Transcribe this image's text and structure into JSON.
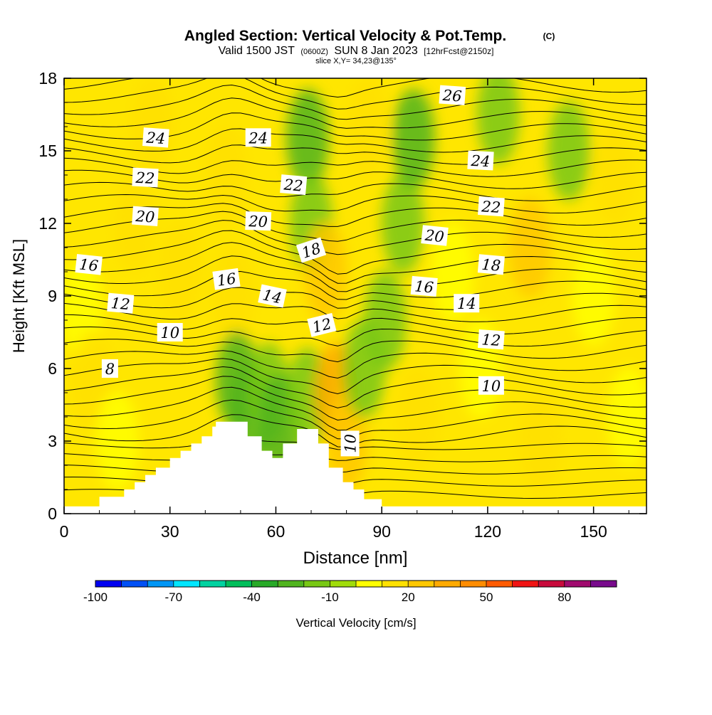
{
  "chart_data": {
    "type": "heatmap",
    "title": "Angled Section: Vertical Velocity & Pot.Temp.",
    "title_mark": "(C)",
    "subtitle": {
      "valid": "Valid 1500 JST",
      "utc": "(0600Z)",
      "date": "SUN 8 Jan 2023",
      "forecast": "[12hrFcst@2150z]"
    },
    "slice_info": "slice X,Y= 34,23@135°",
    "xlabel": "Distance [nm]",
    "ylabel": "Height [Kft MSL]",
    "xlim": [
      0,
      165
    ],
    "ylim": [
      0,
      18
    ],
    "xticks": [
      0,
      30,
      60,
      90,
      120,
      150
    ],
    "yticks": [
      0,
      3,
      6,
      9,
      12,
      15,
      18
    ],
    "colorbar": {
      "label": "Vertical Velocity [cm/s]",
      "tick_labels": [
        -100,
        -70,
        -40,
        -10,
        20,
        50,
        80
      ],
      "colors": [
        "#0000f0",
        "#0050f5",
        "#0096f5",
        "#00e6ff",
        "#00d2a0",
        "#00be5a",
        "#28aa28",
        "#50b41e",
        "#78c814",
        "#a0dc0a",
        "#ffff00",
        "#ffe100",
        "#ffc800",
        "#ffaa00",
        "#ff8c00",
        "#ff5a00",
        "#f01414",
        "#c80a3c",
        "#a00a6e",
        "#780a8c"
      ]
    },
    "terrain_top_kft": [
      [
        0,
        0.3
      ],
      [
        10,
        0.3
      ],
      [
        10,
        0.7
      ],
      [
        17,
        0.7
      ],
      [
        17,
        1.0
      ],
      [
        20,
        1.0
      ],
      [
        20,
        1.3
      ],
      [
        23,
        1.3
      ],
      [
        23,
        1.6
      ],
      [
        26,
        1.6
      ],
      [
        26,
        1.9
      ],
      [
        30,
        1.9
      ],
      [
        30,
        2.3
      ],
      [
        33,
        2.3
      ],
      [
        33,
        2.6
      ],
      [
        36,
        2.6
      ],
      [
        36,
        2.9
      ],
      [
        39,
        2.9
      ],
      [
        39,
        3.2
      ],
      [
        42,
        3.2
      ],
      [
        42,
        3.6
      ],
      [
        43,
        3.6
      ],
      [
        43,
        3.8
      ],
      [
        52,
        3.8
      ],
      [
        52,
        3.2
      ],
      [
        56,
        3.2
      ],
      [
        56,
        2.6
      ],
      [
        59,
        2.6
      ],
      [
        59,
        2.3
      ],
      [
        62,
        2.3
      ],
      [
        62,
        2.9
      ],
      [
        66,
        2.9
      ],
      [
        66,
        3.5
      ],
      [
        72,
        3.5
      ],
      [
        72,
        2.9
      ],
      [
        75,
        2.9
      ],
      [
        75,
        1.9
      ],
      [
        79,
        1.9
      ],
      [
        79,
        1.3
      ],
      [
        82,
        1.3
      ],
      [
        82,
        1.0
      ],
      [
        85,
        1.0
      ],
      [
        85,
        0.6
      ],
      [
        90,
        0.6
      ],
      [
        90,
        0.3
      ],
      [
        165,
        0.3
      ]
    ],
    "velocity_field_cm_s": [
      {
        "x": 5,
        "y": 8.5,
        "w": 0
      },
      {
        "x": 8,
        "y": 5.5,
        "w": 15
      },
      {
        "x": 15,
        "y": 3,
        "w": 5
      },
      {
        "x": 20,
        "y": 12,
        "w": 10
      },
      {
        "x": 25,
        "y": 16,
        "w": 12
      },
      {
        "x": 33,
        "y": 10,
        "w": 10
      },
      {
        "x": 46,
        "y": 14,
        "w": 18
      },
      {
        "x": 48,
        "y": 9,
        "w": 16
      },
      {
        "x": 49,
        "y": 5.5,
        "w": -30
      },
      {
        "x": 53,
        "y": 4.2,
        "w": -28
      },
      {
        "x": 58,
        "y": 5,
        "w": -12
      },
      {
        "x": 61,
        "y": 3.7,
        "w": -25
      },
      {
        "x": 69,
        "y": 4.8,
        "w": -12
      },
      {
        "x": 69,
        "y": 15.5,
        "w": -25
      },
      {
        "x": 70,
        "y": 12,
        "w": -12
      },
      {
        "x": 74,
        "y": 10,
        "w": 22
      },
      {
        "x": 77,
        "y": 5,
        "w": 35
      },
      {
        "x": 80,
        "y": 3,
        "w": 20
      },
      {
        "x": 85,
        "y": 6,
        "w": -12
      },
      {
        "x": 86,
        "y": 16,
        "w": 18
      },
      {
        "x": 91,
        "y": 8,
        "w": -15
      },
      {
        "x": 96,
        "y": 12,
        "w": -18
      },
      {
        "x": 99,
        "y": 15.5,
        "w": -30
      },
      {
        "x": 100,
        "y": 4,
        "w": 10
      },
      {
        "x": 110,
        "y": 10,
        "w": 8
      },
      {
        "x": 118,
        "y": 6,
        "w": 0
      },
      {
        "x": 123,
        "y": 16.5,
        "w": -15
      },
      {
        "x": 132,
        "y": 11,
        "w": 20
      },
      {
        "x": 135,
        "y": 3,
        "w": 12
      },
      {
        "x": 143,
        "y": 15,
        "w": -15
      },
      {
        "x": 150,
        "y": 9,
        "w": 5
      },
      {
        "x": 156,
        "y": 14,
        "w": 15
      },
      {
        "x": 160,
        "y": 4,
        "w": 5
      }
    ],
    "theta_contour_labels": [
      {
        "text": "24",
        "x": 26,
        "y": 15.55,
        "angle": 4
      },
      {
        "text": "24",
        "x": 55,
        "y": 15.55,
        "angle": 0
      },
      {
        "text": "22",
        "x": 23,
        "y": 13.9,
        "angle": 3
      },
      {
        "text": "22",
        "x": 65,
        "y": 13.6,
        "angle": 5
      },
      {
        "text": "20",
        "x": 23,
        "y": 12.3,
        "angle": 4
      },
      {
        "text": "20",
        "x": 55,
        "y": 12.1,
        "angle": 2
      },
      {
        "text": "18",
        "x": 70,
        "y": 10.9,
        "angle": -18
      },
      {
        "text": "16",
        "x": 7,
        "y": 10.3,
        "angle": 6
      },
      {
        "text": "16",
        "x": 46,
        "y": 9.7,
        "angle": -8
      },
      {
        "text": "14",
        "x": 59,
        "y": 9.0,
        "angle": 12
      },
      {
        "text": "12",
        "x": 16,
        "y": 8.7,
        "angle": 5
      },
      {
        "text": "12",
        "x": 73,
        "y": 7.8,
        "angle": -14
      },
      {
        "text": "10",
        "x": 30,
        "y": 7.5,
        "angle": 0
      },
      {
        "text": "8",
        "x": 13,
        "y": 6.0,
        "angle": 0
      },
      {
        "text": "10",
        "x": 81,
        "y": 2.9,
        "angle": -90
      },
      {
        "text": "26",
        "x": 110,
        "y": 17.3,
        "angle": 4
      },
      {
        "text": "24",
        "x": 118,
        "y": 14.6,
        "angle": 3
      },
      {
        "text": "22",
        "x": 121,
        "y": 12.7,
        "angle": 4
      },
      {
        "text": "20",
        "x": 105,
        "y": 11.5,
        "angle": 6
      },
      {
        "text": "18",
        "x": 121,
        "y": 10.3,
        "angle": 5
      },
      {
        "text": "16",
        "x": 102,
        "y": 9.4,
        "angle": 5
      },
      {
        "text": "14",
        "x": 114,
        "y": 8.7,
        "angle": 0
      },
      {
        "text": "12",
        "x": 121,
        "y": 7.2,
        "angle": 4
      },
      {
        "text": "10",
        "x": 121,
        "y": 5.3,
        "angle": 0
      }
    ]
  }
}
